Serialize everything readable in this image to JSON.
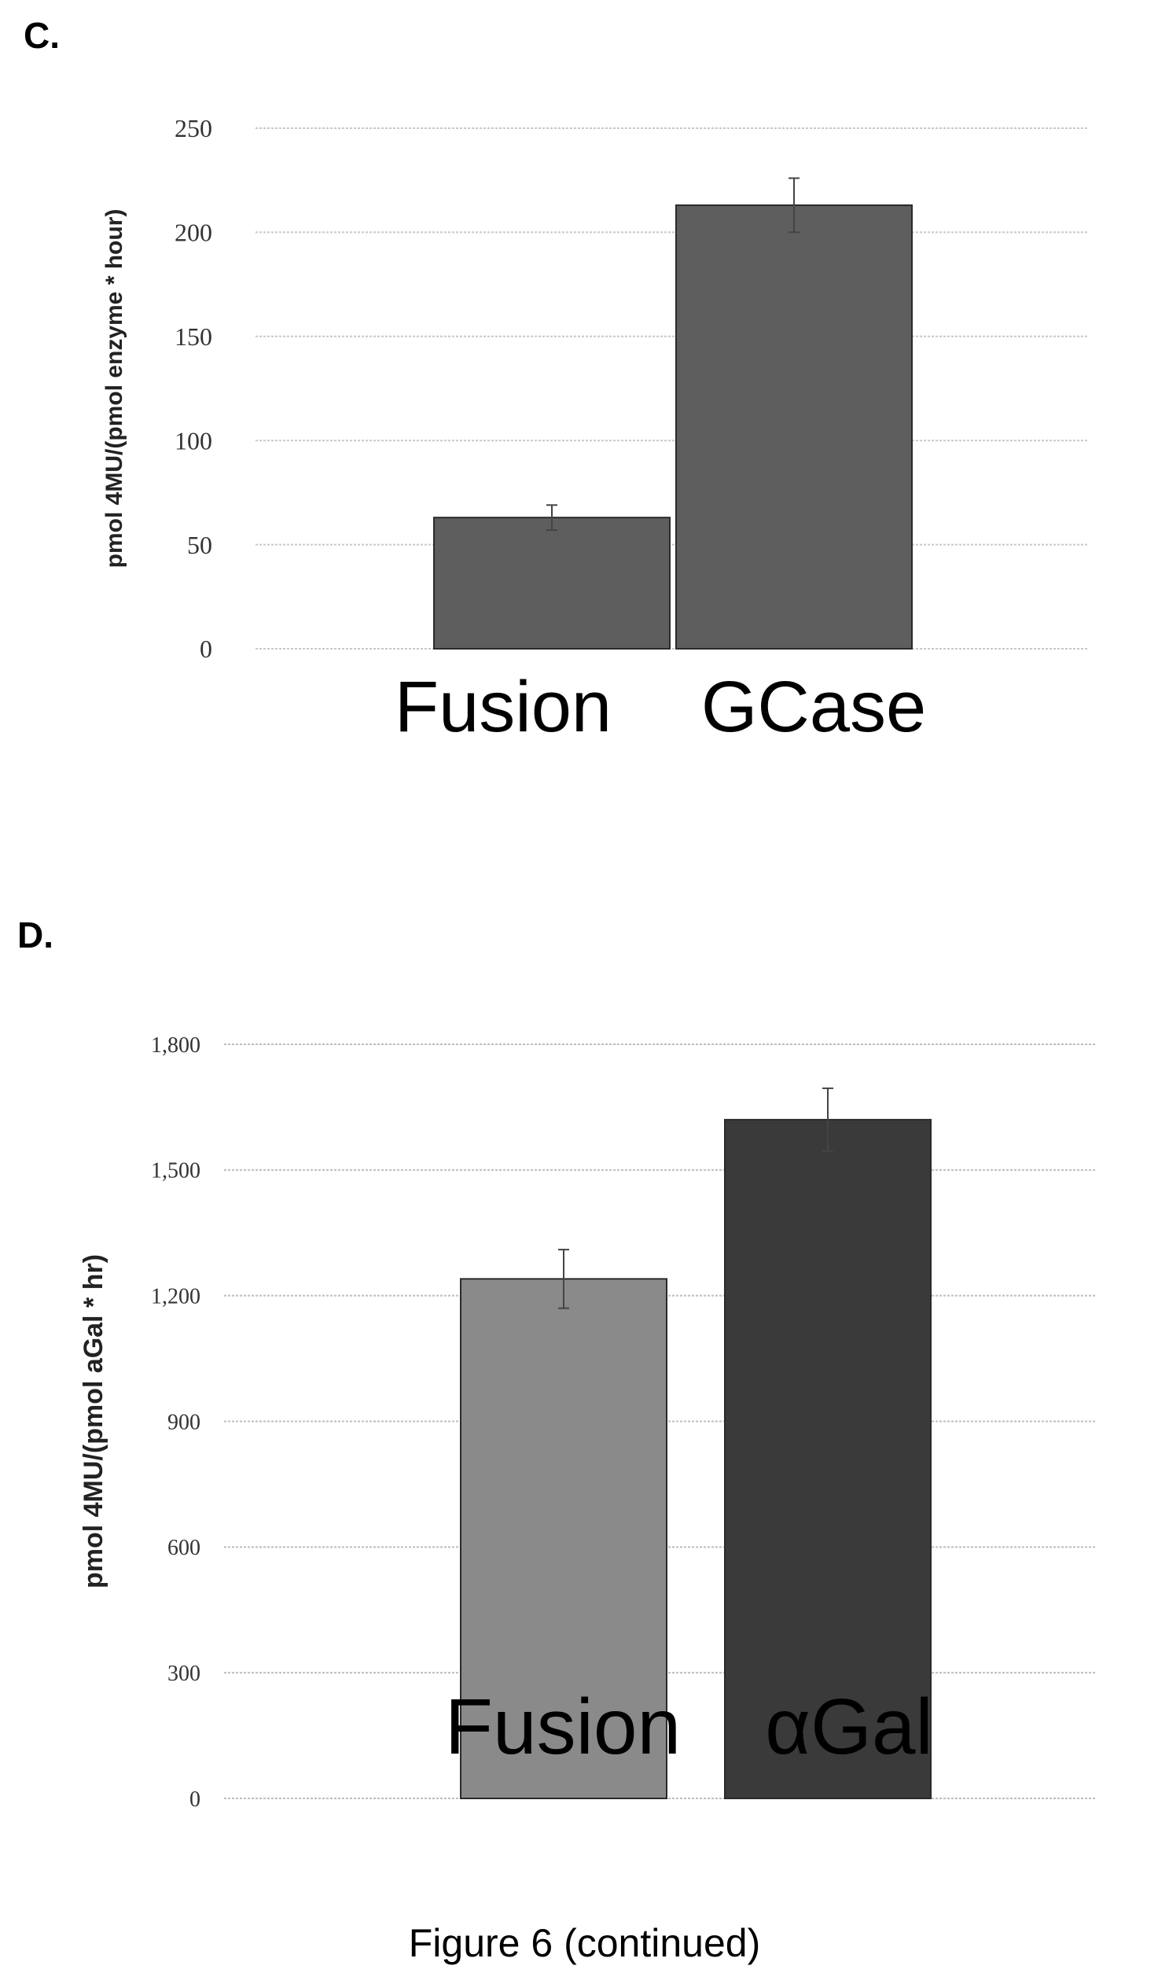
{
  "panels": {
    "c_label": "C.",
    "d_label": "D."
  },
  "caption": "Figure 6 (continued)",
  "chart_data": [
    {
      "type": "bar",
      "panel": "C.",
      "categories": [
        "Fusion",
        "GCase"
      ],
      "values": [
        63,
        213
      ],
      "errors": [
        6,
        13
      ],
      "colors": [
        "#5e5e5e",
        "#5e5e5e"
      ],
      "ylabel": "pmol 4MU/(pmol enzyme * hour)",
      "ylim": [
        0,
        250
      ],
      "yticks": [
        0,
        50,
        100,
        150,
        200,
        250
      ],
      "ytick_labels": [
        "0",
        "50",
        "100",
        "150",
        "200",
        "250"
      ],
      "grid": true
    },
    {
      "type": "bar",
      "panel": "D.",
      "categories": [
        "Fusion",
        "αGal"
      ],
      "values": [
        1240,
        1620
      ],
      "errors": [
        70,
        75
      ],
      "colors": [
        "#8a8a8a",
        "#3a3a3a"
      ],
      "ylabel": "pmol 4MU/(pmol aGal * hr)",
      "ylim": [
        0,
        1800
      ],
      "yticks": [
        0,
        300,
        600,
        900,
        1200,
        1500,
        1800
      ],
      "ytick_labels": [
        "0",
        "300",
        "600",
        "900",
        "1,200",
        "1,500",
        "1,800"
      ],
      "grid": true
    }
  ]
}
